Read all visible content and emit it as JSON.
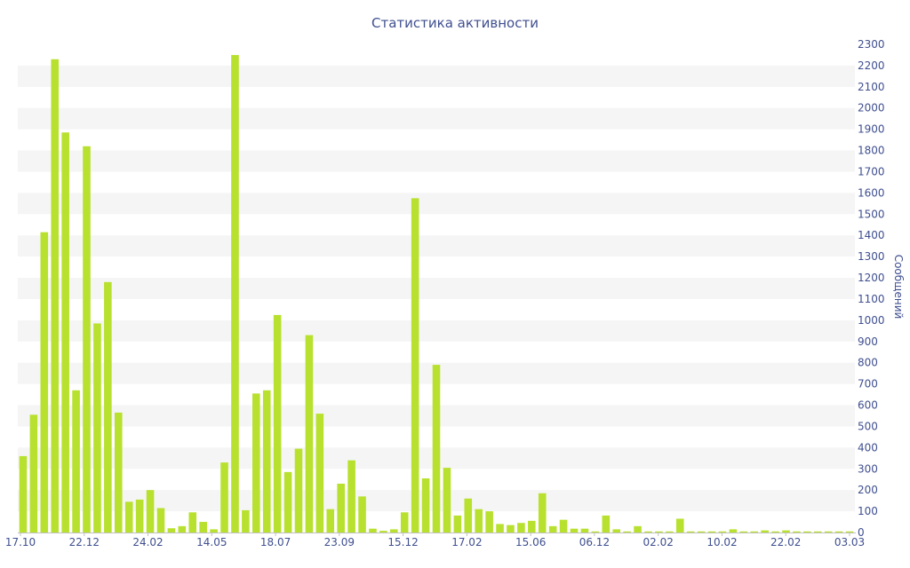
{
  "chart_data": {
    "type": "bar",
    "title": "Статистика активности",
    "xlabel": "",
    "ylabel": "Сообщений",
    "ylim": [
      0,
      2300
    ],
    "y_ticks": [
      0,
      100,
      200,
      300,
      400,
      500,
      600,
      700,
      800,
      900,
      1000,
      1100,
      1200,
      1300,
      1400,
      1500,
      1600,
      1700,
      1800,
      1900,
      2000,
      2100,
      2200,
      2300
    ],
    "x_tick_labels": [
      "17.10",
      "22.12",
      "24.02",
      "14.05",
      "18.07",
      "23.09",
      "15.12",
      "17.02",
      "15.06",
      "06.12",
      "02.02",
      "10.02",
      "22.02",
      "03.03"
    ],
    "grid": "alternating horizontal bands",
    "y_axis_position": "right",
    "bar_color": "#b8e12f",
    "text_color": "#3f4f8f",
    "values": [
      360,
      555,
      1415,
      2230,
      1885,
      670,
      1820,
      985,
      1180,
      565,
      145,
      155,
      200,
      115,
      20,
      30,
      95,
      50,
      15,
      330,
      2250,
      105,
      655,
      670,
      1025,
      285,
      395,
      930,
      560,
      110,
      230,
      340,
      170,
      18,
      8,
      15,
      95,
      1575,
      255,
      790,
      305,
      80,
      160,
      110,
      100,
      40,
      35,
      45,
      55,
      185,
      30,
      60,
      18,
      18,
      5,
      80,
      15,
      5,
      30,
      5,
      5,
      5,
      65,
      5,
      5,
      5,
      5,
      15,
      5,
      5,
      10,
      5,
      10,
      5,
      5,
      5,
      5,
      5,
      5
    ]
  }
}
